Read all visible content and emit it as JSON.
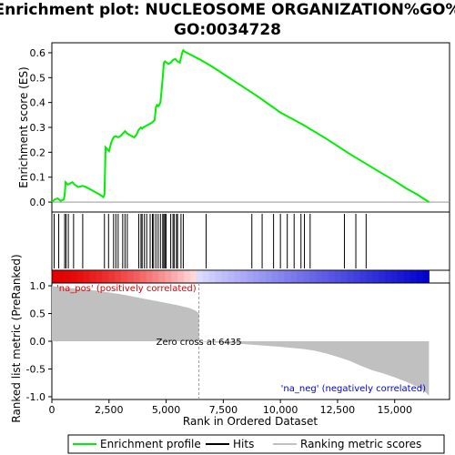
{
  "chart_data": {
    "type": "line",
    "title_line1": "Enrichment plot: NUCLEOSOME ORGANIZATION%GO%",
    "title_line2": "GO:0034728",
    "top_panel": {
      "ylabel": "Enrichment score (ES)",
      "ylim": [
        -0.04,
        0.64
      ],
      "yticks": [
        0.0,
        0.1,
        0.2,
        0.3,
        0.4,
        0.5,
        0.6
      ],
      "ytick_labels": [
        "0.0",
        "0.1",
        "0.2",
        "0.3",
        "0.4",
        "0.5",
        "0.6"
      ],
      "series": [
        {
          "name": "Enrichment profile",
          "color": "#00ee00",
          "x": [
            0,
            120,
            250,
            380,
            520,
            560,
            600,
            650,
            700,
            800,
            900,
            1000,
            1150,
            1350,
            1500,
            1700,
            1900,
            2100,
            2250,
            2300,
            2350,
            2400,
            2450,
            2500,
            2600,
            2700,
            2800,
            2900,
            3000,
            3100,
            3200,
            3300,
            3400,
            3500,
            3600,
            3700,
            3800,
            3900,
            3950,
            4000,
            4100,
            4200,
            4300,
            4400,
            4500,
            4550,
            4600,
            4650,
            4700,
            4750,
            4800,
            4850,
            4900,
            4950,
            5100,
            5200,
            5300,
            5400,
            5500,
            5600,
            5700,
            5750,
            5800,
            6000,
            6435,
            7000,
            8000,
            9000,
            10000,
            11000,
            12000,
            13000,
            14000,
            15000,
            15500,
            16000,
            16500
          ],
          "y": [
            0.0,
            0.01,
            0.015,
            0.005,
            0.01,
            0.03,
            0.08,
            0.075,
            0.07,
            0.075,
            0.08,
            0.07,
            0.06,
            0.065,
            0.06,
            0.05,
            0.04,
            0.03,
            0.02,
            0.03,
            0.22,
            0.215,
            0.21,
            0.205,
            0.24,
            0.26,
            0.265,
            0.26,
            0.265,
            0.275,
            0.285,
            0.275,
            0.27,
            0.265,
            0.26,
            0.27,
            0.29,
            0.3,
            0.295,
            0.3,
            0.305,
            0.31,
            0.315,
            0.32,
            0.33,
            0.38,
            0.39,
            0.385,
            0.39,
            0.4,
            0.45,
            0.5,
            0.56,
            0.565,
            0.555,
            0.56,
            0.57,
            0.575,
            0.565,
            0.56,
            0.6,
            0.61,
            0.605,
            0.595,
            0.575,
            0.545,
            0.485,
            0.425,
            0.36,
            0.31,
            0.255,
            0.195,
            0.14,
            0.085,
            0.055,
            0.03,
            0.0
          ]
        }
      ]
    },
    "hits": {
      "name": "Hits",
      "ranks": [
        100,
        300,
        560,
        620,
        720,
        950,
        1350,
        2300,
        2480,
        2700,
        2800,
        2900,
        3100,
        3200,
        3300,
        3800,
        3900,
        3950,
        4050,
        4150,
        4300,
        4400,
        4450,
        4550,
        4650,
        4750,
        4850,
        4900,
        4950,
        5000,
        5200,
        5300,
        5350,
        5450,
        5500,
        5650,
        5750,
        6750,
        8750,
        9200,
        9700,
        10000,
        10300,
        10600,
        10900,
        11050,
        11300,
        12800,
        13300,
        13750
      ]
    },
    "lower_panel": {
      "ylabel": "Ranked list metric (PreRanked)",
      "ylim": [
        -1.05,
        1.05
      ],
      "yticks": [
        1.0,
        0.5,
        0.0,
        -0.5,
        -1.0
      ],
      "ytick_labels": [
        "1.0",
        "0.5",
        "0.0",
        "-0.5",
        "-1.0"
      ],
      "series": [
        {
          "name": "Ranking metric scores",
          "color": "#c0c0c0",
          "x": [
            0,
            100,
            300,
            600,
            1000,
            1500,
            2000,
            2500,
            3000,
            3500,
            4000,
            4500,
            5000,
            5500,
            6000,
            6300,
            6435,
            6436,
            7000,
            8000,
            9000,
            10000,
            11000,
            11500,
            12000,
            12500,
            13000,
            13500,
            14000,
            14500,
            15000,
            15500,
            16000,
            16300,
            16500
          ],
          "y": [
            1.0,
            0.99,
            0.98,
            0.96,
            0.95,
            0.93,
            0.91,
            0.88,
            0.85,
            0.81,
            0.77,
            0.73,
            0.69,
            0.65,
            0.6,
            0.55,
            0.5,
            0.0,
            -0.02,
            -0.04,
            -0.07,
            -0.1,
            -0.14,
            -0.17,
            -0.22,
            -0.28,
            -0.35,
            -0.44,
            -0.52,
            -0.58,
            -0.65,
            -0.73,
            -0.82,
            -0.9,
            -0.98
          ]
        }
      ],
      "zero_cross_label": "Zero cross at 6435",
      "zero_cross_rank": 6435,
      "pos_label": "'na_pos' (positively correlated)",
      "neg_label": "'na_neg' (negatively correlated)",
      "pos_color": "#dd0000",
      "neg_color": "#0000cc"
    },
    "xaxis": {
      "label": "Rank in Ordered Dataset",
      "xlim": [
        0,
        17400
      ],
      "xticks": [
        0,
        2500,
        5000,
        7500,
        10000,
        12500,
        15000
      ],
      "xtick_labels": [
        "0",
        "2,500",
        "5,000",
        "7,500",
        "10,000",
        "12,500",
        "15,000"
      ],
      "n_genes": 16500
    },
    "legend": {
      "placement": "bottom",
      "items": [
        {
          "label": "Enrichment profile",
          "color": "#00ee00"
        },
        {
          "label": "Hits",
          "color": "#000000"
        },
        {
          "label": "Ranking metric scores",
          "color": "#c0c0c0"
        }
      ]
    }
  }
}
